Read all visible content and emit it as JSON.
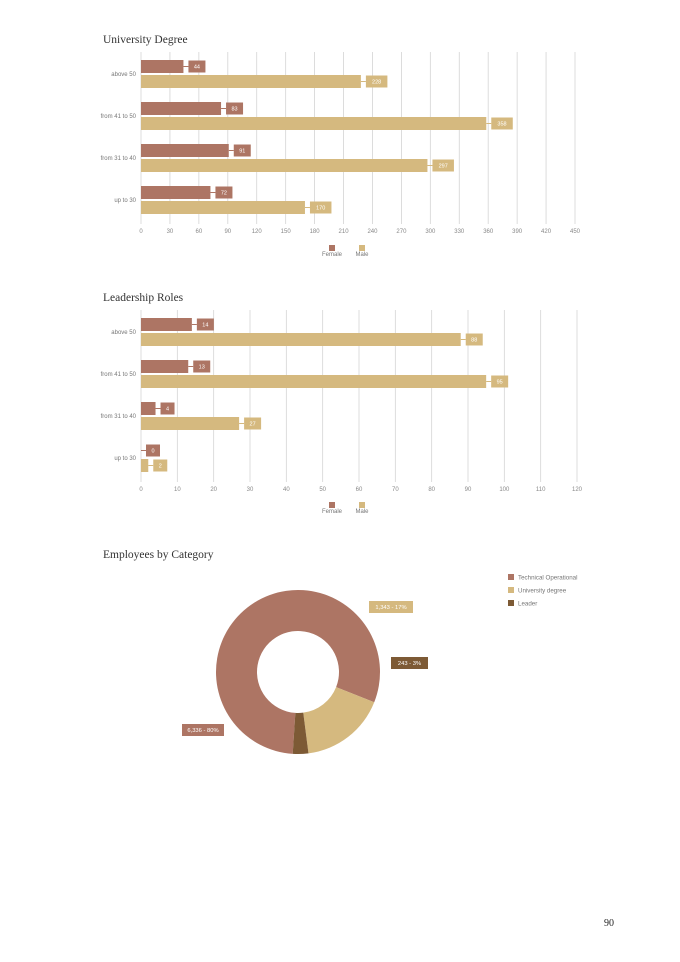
{
  "colors": {
    "female": "#ad7564",
    "male": "#d5b97f",
    "leader": "#7d5a35",
    "grid": "#d4d4d4"
  },
  "page_number": "90",
  "chart_data": [
    {
      "type": "bar",
      "orientation": "horizontal",
      "title": "University Degree",
      "categories": [
        "above 50",
        "from 41 to 50",
        "from 31 to 40",
        "up to 30"
      ],
      "series": [
        {
          "name": "Female",
          "values": [
            44,
            83,
            91,
            72
          ]
        },
        {
          "name": "Male",
          "values": [
            228,
            358,
            297,
            170
          ]
        }
      ],
      "xlim": [
        0,
        450
      ],
      "xticks": [
        0,
        30,
        60,
        90,
        120,
        150,
        180,
        210,
        240,
        270,
        300,
        330,
        360,
        390,
        420,
        450
      ],
      "grid": true,
      "legend": "bottom-center"
    },
    {
      "type": "bar",
      "orientation": "horizontal",
      "title": "Leadership Roles",
      "categories": [
        "above 50",
        "from 41 to 50",
        "from 31 to 40",
        "up to 30"
      ],
      "series": [
        {
          "name": "Female",
          "values": [
            14,
            13,
            4,
            0
          ]
        },
        {
          "name": "Male",
          "values": [
            88,
            95,
            27,
            2
          ]
        }
      ],
      "xlim": [
        0,
        120
      ],
      "xticks": [
        0,
        10,
        20,
        30,
        40,
        50,
        60,
        70,
        80,
        90,
        100,
        110,
        120
      ],
      "grid": true,
      "legend": "bottom-center"
    },
    {
      "type": "pie",
      "donut": true,
      "title": "Employees by Category",
      "slices": [
        {
          "name": "Technical Operational",
          "value": 6336,
          "label": "6,336 - 80%"
        },
        {
          "name": "University degree",
          "value": 1343,
          "label": "1,343 - 17%"
        },
        {
          "name": "Leader",
          "value": 243,
          "label": "243 - 3%"
        }
      ],
      "legend": "top-right"
    }
  ]
}
